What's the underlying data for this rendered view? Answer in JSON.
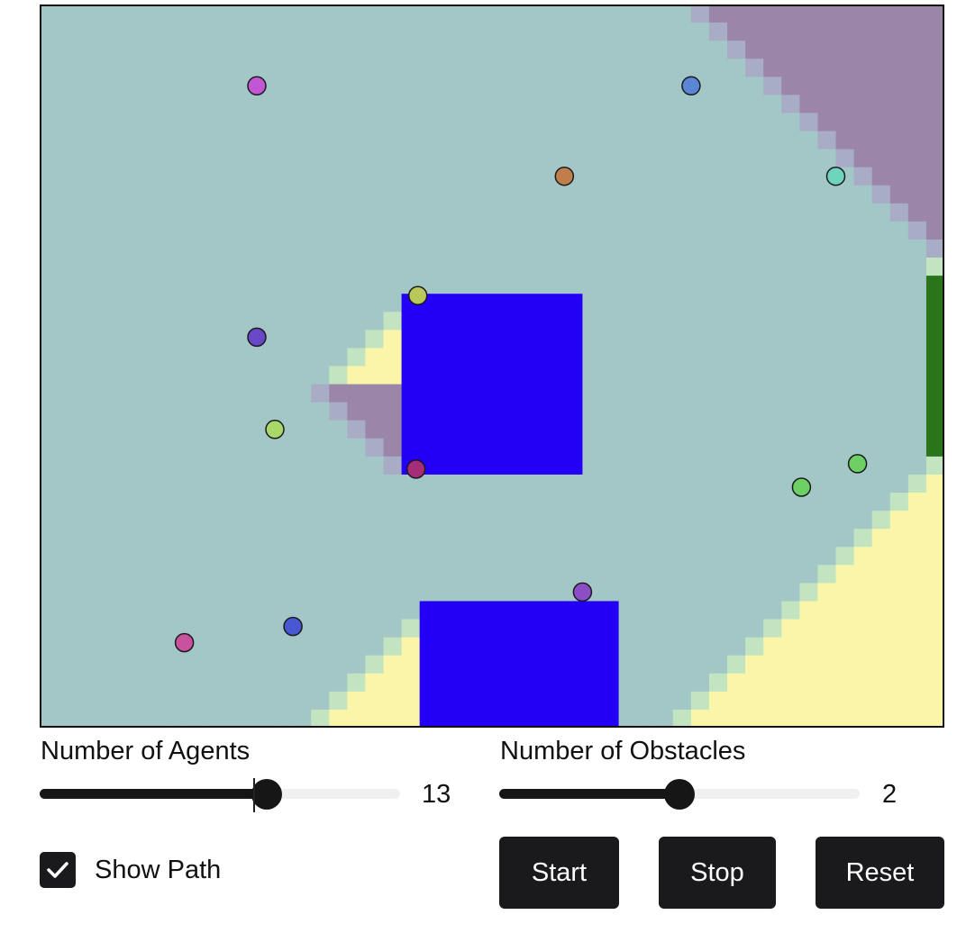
{
  "simulation": {
    "grid": {
      "cols": 50,
      "rows": 40
    },
    "colors": {
      "background": "#a3c6c6",
      "yellow_zone": "#faf5a9",
      "purple_zone": "#9c86a8",
      "green_fringe": "#c2e4c0",
      "purple_fringe": "#a9acc5",
      "goal": "#2a741a",
      "obstacle": "#2300f5",
      "border": "#111111",
      "agent_stroke": "#1a1a1a"
    },
    "obstacles": [
      {
        "col": 20,
        "row": 16,
        "w": 10,
        "h": 10
      },
      {
        "col": 21,
        "row": 33,
        "w": 11,
        "h": 7
      }
    ],
    "goal": {
      "col": 49,
      "row": 15,
      "w": 1,
      "h": 10
    },
    "agents": [
      {
        "col": 12.0,
        "row": 4.5,
        "color": "#c257d4"
      },
      {
        "col": 36.0,
        "row": 4.5,
        "color": "#5a86d6"
      },
      {
        "col": 29.0,
        "row": 9.5,
        "color": "#c07e4c"
      },
      {
        "col": 44.0,
        "row": 9.5,
        "color": "#6ed4bc"
      },
      {
        "col": 20.9,
        "row": 16.1,
        "color": "#b9c85a"
      },
      {
        "col": 12.0,
        "row": 18.4,
        "color": "#6848c8"
      },
      {
        "col": 13.0,
        "row": 23.5,
        "color": "#a8d86a"
      },
      {
        "col": 20.8,
        "row": 25.7,
        "color": "#a52c78"
      },
      {
        "col": 42.1,
        "row": 26.7,
        "color": "#6cd065"
      },
      {
        "col": 45.2,
        "row": 25.4,
        "color": "#6cd065"
      },
      {
        "col": 30.0,
        "row": 32.5,
        "color": "#8c4ec6"
      },
      {
        "col": 14.0,
        "row": 34.4,
        "color": "#4858d4"
      },
      {
        "col": 8.0,
        "row": 35.3,
        "color": "#c8529e"
      }
    ]
  },
  "controls": {
    "agents_label": "Number of Agents",
    "agents_value": "13",
    "agents_fraction": 0.63,
    "obstacles_label": "Number of Obstacles",
    "obstacles_value": "2",
    "obstacles_fraction": 0.5,
    "show_path_label": "Show Path",
    "show_path_checked": true,
    "start_label": "Start",
    "stop_label": "Stop",
    "reset_label": "Reset"
  }
}
